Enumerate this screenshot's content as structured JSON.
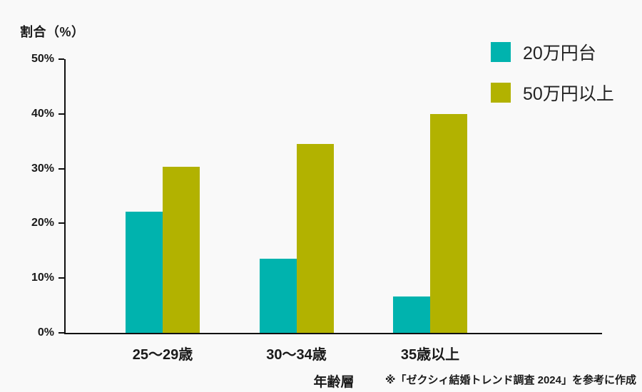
{
  "page": {
    "background_color": "#f9f9f9",
    "text_color": "#1a1a1a"
  },
  "chart_data": {
    "type": "bar",
    "title": "",
    "y_axis_title": "割合（%）",
    "x_axis_title": "年齢層",
    "categories": [
      "25〜29歳",
      "30〜34歳",
      "35歳以上"
    ],
    "series": [
      {
        "name": "20万円台",
        "color": "#00b3ae",
        "values": [
          22.2,
          13.5,
          6.7
        ]
      },
      {
        "name": "50万円以上",
        "color": "#b2b200",
        "values": [
          30.3,
          34.5,
          40.0
        ]
      }
    ],
    "y_ticks": [
      "0%",
      "10%",
      "20%",
      "30%",
      "40%",
      "50%"
    ],
    "y_tick_values": [
      0,
      10,
      20,
      30,
      40,
      50
    ],
    "ylim": [
      0,
      50
    ],
    "grid": false,
    "legend_position": "top-right",
    "axis_color": "#111111"
  },
  "footnote": "※「ゼクシィ結婚トレンド調査 2024」を参考に作成"
}
